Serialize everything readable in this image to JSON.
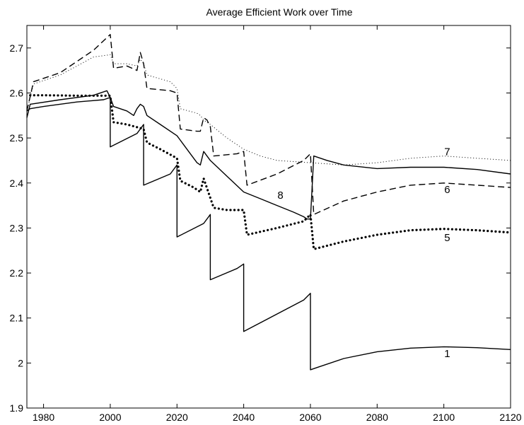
{
  "chart_data": {
    "type": "line",
    "title": "Average Efficient Work over Time",
    "xlabel": "",
    "ylabel": "",
    "xlim": [
      1975,
      2120
    ],
    "ylim": [
      1.9,
      2.75
    ],
    "xticks": [
      1980,
      2000,
      2020,
      2040,
      2060,
      2080,
      2100,
      2120
    ],
    "yticks": [
      1.9,
      2.0,
      2.1,
      2.2,
      2.3,
      2.4,
      2.5,
      2.6,
      2.7
    ],
    "ytick_labels": [
      "1.9",
      "2",
      "2.1",
      "2.2",
      "2.3",
      "2.4",
      "2.5",
      "2.6",
      "2.7"
    ],
    "grid": false,
    "legend": "none",
    "series": [
      {
        "name": "1",
        "style": "solid",
        "color": "#000000",
        "x": [
          1975,
          1976,
          1980,
          1990,
          1998,
          2000,
          2000,
          2008,
          2010,
          2010,
          2018,
          2020,
          2020,
          2028,
          2030,
          2030,
          2038,
          2040,
          2040,
          2058,
          2060,
          2060,
          2062,
          2070,
          2080,
          2090,
          2100,
          2110,
          2120
        ],
        "y": [
          2.56,
          2.565,
          2.57,
          2.58,
          2.585,
          2.59,
          2.48,
          2.51,
          2.53,
          2.395,
          2.42,
          2.44,
          2.28,
          2.31,
          2.33,
          2.185,
          2.21,
          2.22,
          2.07,
          2.14,
          2.155,
          1.985,
          1.99,
          2.01,
          2.025,
          2.033,
          2.036,
          2.034,
          2.03
        ]
      },
      {
        "name": "5",
        "style": "dotted-heavy",
        "color": "#000000",
        "x": [
          1976,
          1980,
          1990,
          1998,
          2000,
          2001,
          2005,
          2010,
          2011,
          2015,
          2020,
          2021,
          2025,
          2027,
          2028,
          2031,
          2035,
          2040,
          2041,
          2050,
          2058,
          2060,
          2061,
          2070,
          2080,
          2090,
          2100,
          2110,
          2120
        ],
        "y": [
          2.595,
          2.595,
          2.594,
          2.594,
          2.594,
          2.535,
          2.53,
          2.52,
          2.49,
          2.475,
          2.455,
          2.405,
          2.39,
          2.38,
          2.41,
          2.345,
          2.34,
          2.34,
          2.285,
          2.3,
          2.315,
          2.33,
          2.253,
          2.27,
          2.285,
          2.295,
          2.298,
          2.295,
          2.29
        ]
      },
      {
        "name": "6",
        "style": "dashed",
        "color": "#000000",
        "x": [
          1975,
          1977,
          1985,
          1995,
          2000,
          2001,
          2005,
          2008,
          2009,
          2010,
          2011,
          2018,
          2020,
          2021,
          2026,
          2027,
          2028,
          2029,
          2030,
          2031,
          2038,
          2040,
          2041,
          2050,
          2058,
          2060,
          2061,
          2070,
          2080,
          2090,
          2100,
          2110,
          2120
        ],
        "y": [
          2.56,
          2.625,
          2.645,
          2.695,
          2.73,
          2.655,
          2.66,
          2.65,
          2.69,
          2.665,
          2.61,
          2.605,
          2.6,
          2.52,
          2.515,
          2.515,
          2.545,
          2.54,
          2.525,
          2.46,
          2.465,
          2.47,
          2.395,
          2.42,
          2.45,
          2.465,
          2.33,
          2.36,
          2.38,
          2.395,
          2.4,
          2.395,
          2.39
        ]
      },
      {
        "name": "7",
        "style": "dotted-fine",
        "color": "#000000",
        "x": [
          1975,
          1977,
          1985,
          1995,
          2000,
          2001,
          2005,
          2008,
          2009,
          2010,
          2011,
          2018,
          2020,
          2021,
          2026,
          2027,
          2028,
          2030,
          2035,
          2040,
          2045,
          2050,
          2060,
          2070,
          2080,
          2090,
          2100,
          2110,
          2120
        ],
        "y": [
          2.56,
          2.62,
          2.64,
          2.68,
          2.685,
          2.665,
          2.665,
          2.66,
          2.675,
          2.665,
          2.64,
          2.625,
          2.61,
          2.565,
          2.555,
          2.55,
          2.54,
          2.53,
          2.5,
          2.475,
          2.46,
          2.45,
          2.445,
          2.44,
          2.445,
          2.455,
          2.46,
          2.455,
          2.45
        ]
      },
      {
        "name": "8",
        "style": "solid",
        "color": "#000000",
        "x": [
          1975,
          1976,
          1985,
          1995,
          1999,
          2000,
          2001,
          2005,
          2007,
          2008,
          2009,
          2010,
          2011,
          2015,
          2020,
          2025,
          2026,
          2027,
          2028,
          2030,
          2035,
          2040,
          2045,
          2050,
          2055,
          2058,
          2059,
          2060,
          2061,
          2065,
          2070,
          2080,
          2090,
          2100,
          2110,
          2120
        ],
        "y": [
          2.545,
          2.575,
          2.585,
          2.595,
          2.605,
          2.59,
          2.57,
          2.56,
          2.55,
          2.565,
          2.575,
          2.57,
          2.55,
          2.53,
          2.505,
          2.455,
          2.445,
          2.44,
          2.47,
          2.45,
          2.415,
          2.38,
          2.365,
          2.35,
          2.335,
          2.325,
          2.32,
          2.32,
          2.46,
          2.45,
          2.44,
          2.432,
          2.435,
          2.435,
          2.43,
          2.42
        ]
      }
    ],
    "annotations": [
      {
        "text": "8",
        "x": 2051,
        "y": 2.365
      },
      {
        "text": "7",
        "x": 2101,
        "y": 2.462
      },
      {
        "text": "6",
        "x": 2101,
        "y": 2.378
      },
      {
        "text": "5",
        "x": 2101,
        "y": 2.271
      },
      {
        "text": "1",
        "x": 2101,
        "y": 2.013
      }
    ]
  }
}
